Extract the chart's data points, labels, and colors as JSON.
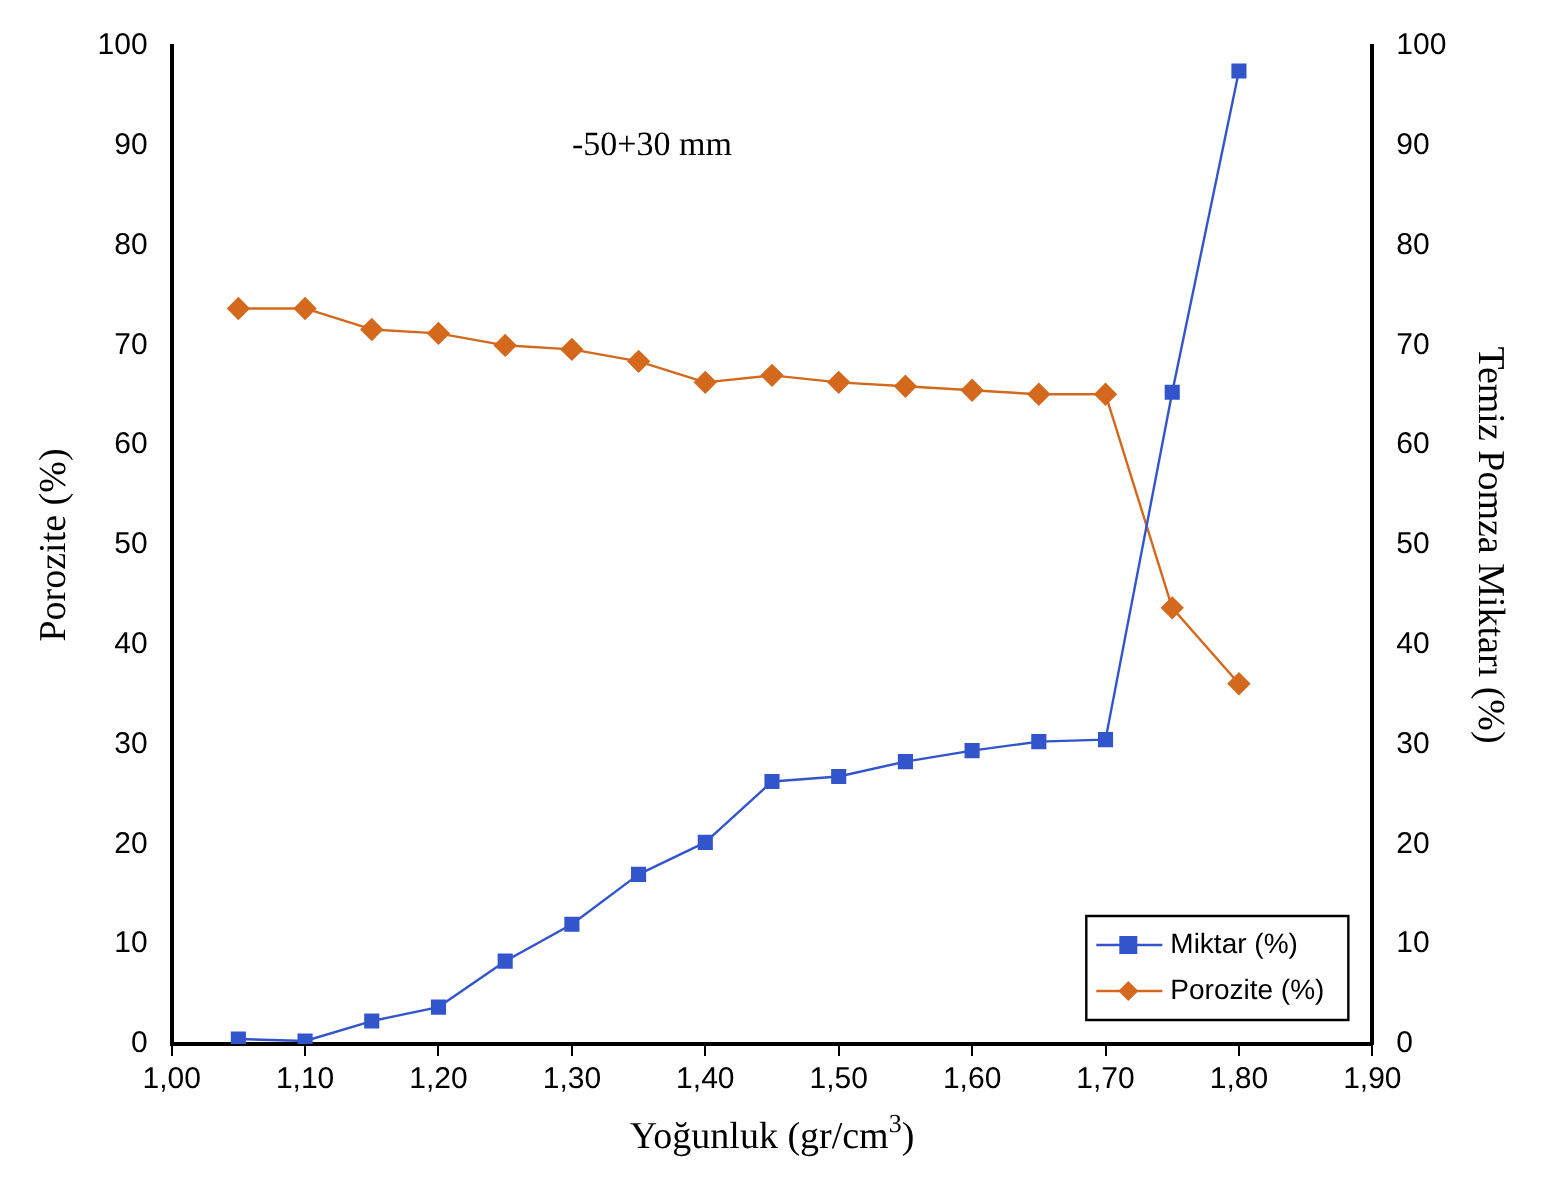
{
  "chart_data": {
    "type": "line",
    "xlabel": "Yoğunluk (gr/cm$^{3}$)",
    "ylabel": "Porozite (%)",
    "y2label": "Temiz Pomza Miktarı (%)",
    "annotations": [
      "-50+30 mm"
    ],
    "x": [
      1.05,
      1.1,
      1.15,
      1.2,
      1.25,
      1.3,
      1.35,
      1.4,
      1.45,
      1.5,
      1.55,
      1.6,
      1.65,
      1.7,
      1.75,
      1.8
    ],
    "xlim": [
      1.0,
      1.9
    ],
    "xticks": [
      {
        "value": 1.0,
        "label": "1,00"
      },
      {
        "value": 1.1,
        "label": "1,10"
      },
      {
        "value": 1.2,
        "label": "1,20"
      },
      {
        "value": 1.3,
        "label": "1,30"
      },
      {
        "value": 1.4,
        "label": "1,40"
      },
      {
        "value": 1.5,
        "label": "1,50"
      },
      {
        "value": 1.6,
        "label": "1,60"
      },
      {
        "value": 1.7,
        "label": "1,70"
      },
      {
        "value": 1.8,
        "label": "1,80"
      },
      {
        "value": 1.9,
        "label": "1,90"
      }
    ],
    "ylim": [
      0,
      100
    ],
    "yticks": [
      0,
      10,
      20,
      30,
      40,
      50,
      60,
      70,
      80,
      90,
      100
    ],
    "y2lim": [
      0,
      100
    ],
    "y2ticks": [
      0,
      10,
      20,
      30,
      40,
      50,
      60,
      70,
      80,
      90,
      100
    ],
    "grid": false,
    "legend": "bottom right",
    "line_style": "solid",
    "series": [
      {
        "name": "Miktar (%)",
        "color": "#3355cc",
        "axis": "y2",
        "marker": "square",
        "values": [
          0.5,
          0.3,
          2.3,
          3.7,
          8.3,
          12,
          17,
          20.2,
          26.3,
          26.8,
          28.3,
          29.4,
          30.3,
          30.5,
          65.3,
          97.5
        ]
      },
      {
        "name": "Porozite (%)",
        "color": "#d4691e",
        "marker": "diamond",
        "values": [
          73.7,
          73.7,
          71.6,
          71.2,
          70,
          69.6,
          68.4,
          66.3,
          67,
          66.3,
          65.9,
          65.5,
          65.1,
          65.1,
          43.7,
          36.1
        ]
      }
    ]
  }
}
